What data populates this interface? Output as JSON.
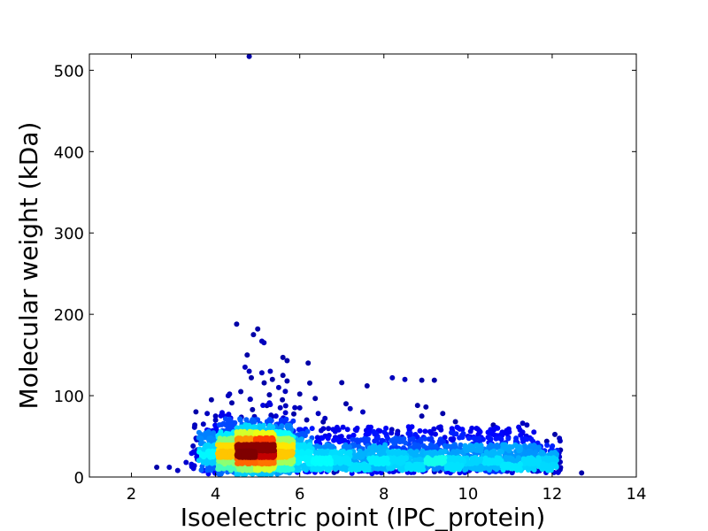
{
  "chart_data": {
    "type": "scatter",
    "title": "",
    "xlabel": "Isoelectric point (IPC_protein)",
    "ylabel": "Molecular weight (kDa)",
    "xlim": [
      1,
      14
    ],
    "ylim": [
      0,
      520
    ],
    "xticks": [
      2,
      4,
      6,
      8,
      10,
      12,
      14
    ],
    "yticks": [
      0,
      100,
      200,
      300,
      400,
      500
    ],
    "grid": false,
    "legend": "none",
    "colormap": "jet (point density)",
    "colormap_stops": [
      "#00007f",
      "#0000ff",
      "#00aaff",
      "#00ffff",
      "#7fff7f",
      "#ffff00",
      "#ff7f00",
      "#ff0000",
      "#7f0000"
    ],
    "density_peak": {
      "x": 4.95,
      "y": 30
    },
    "points": [
      {
        "x": 4.8,
        "y": 517
      },
      {
        "x": 4.5,
        "y": 188
      },
      {
        "x": 5.0,
        "y": 182
      },
      {
        "x": 4.9,
        "y": 175
      },
      {
        "x": 5.1,
        "y": 167
      },
      {
        "x": 5.15,
        "y": 165
      },
      {
        "x": 4.75,
        "y": 150
      },
      {
        "x": 5.6,
        "y": 147
      },
      {
        "x": 5.7,
        "y": 143
      },
      {
        "x": 6.2,
        "y": 140
      },
      {
        "x": 4.7,
        "y": 135
      },
      {
        "x": 4.8,
        "y": 130
      },
      {
        "x": 5.3,
        "y": 130
      },
      {
        "x": 5.1,
        "y": 128
      },
      {
        "x": 5.6,
        "y": 125
      },
      {
        "x": 4.85,
        "y": 122
      },
      {
        "x": 5.35,
        "y": 120
      },
      {
        "x": 5.7,
        "y": 118
      },
      {
        "x": 8.2,
        "y": 122
      },
      {
        "x": 8.5,
        "y": 120
      },
      {
        "x": 8.9,
        "y": 119
      },
      {
        "x": 9.2,
        "y": 119
      },
      {
        "x": 7.0,
        "y": 116
      },
      {
        "x": 7.6,
        "y": 112
      },
      {
        "x": 5.5,
        "y": 110
      },
      {
        "x": 4.6,
        "y": 105
      },
      {
        "x": 6.0,
        "y": 102
      },
      {
        "x": 4.3,
        "y": 100
      },
      {
        "x": 3.9,
        "y": 95
      },
      {
        "x": 7.1,
        "y": 90
      },
      {
        "x": 8.8,
        "y": 88
      },
      {
        "x": 9.0,
        "y": 86
      },
      {
        "x": 6.0,
        "y": 85
      },
      {
        "x": 7.2,
        "y": 84
      },
      {
        "x": 7.5,
        "y": 80
      },
      {
        "x": 9.4,
        "y": 78
      },
      {
        "x": 3.8,
        "y": 78
      },
      {
        "x": 4.0,
        "y": 75
      },
      {
        "x": 8.9,
        "y": 75
      },
      {
        "x": 6.6,
        "y": 72
      },
      {
        "x": 9.7,
        "y": 68
      },
      {
        "x": 11.3,
        "y": 66
      },
      {
        "x": 10.6,
        "y": 64
      },
      {
        "x": 11.4,
        "y": 64
      },
      {
        "x": 3.5,
        "y": 61
      },
      {
        "x": 10.6,
        "y": 58
      },
      {
        "x": 11.3,
        "y": 55
      },
      {
        "x": 10.0,
        "y": 50
      },
      {
        "x": 3.6,
        "y": 48
      },
      {
        "x": 3.3,
        "y": 18
      },
      {
        "x": 2.6,
        "y": 12
      },
      {
        "x": 2.9,
        "y": 12
      },
      {
        "x": 3.1,
        "y": 8
      },
      {
        "x": 12.7,
        "y": 5
      },
      {
        "x": 12.1,
        "y": 12
      },
      {
        "x": 11.9,
        "y": 8
      },
      {
        "x": 11.8,
        "y": 22
      },
      {
        "x": 11.5,
        "y": 30
      },
      {
        "x": 11.6,
        "y": 40
      },
      {
        "x": 12.0,
        "y": 14
      }
    ]
  }
}
